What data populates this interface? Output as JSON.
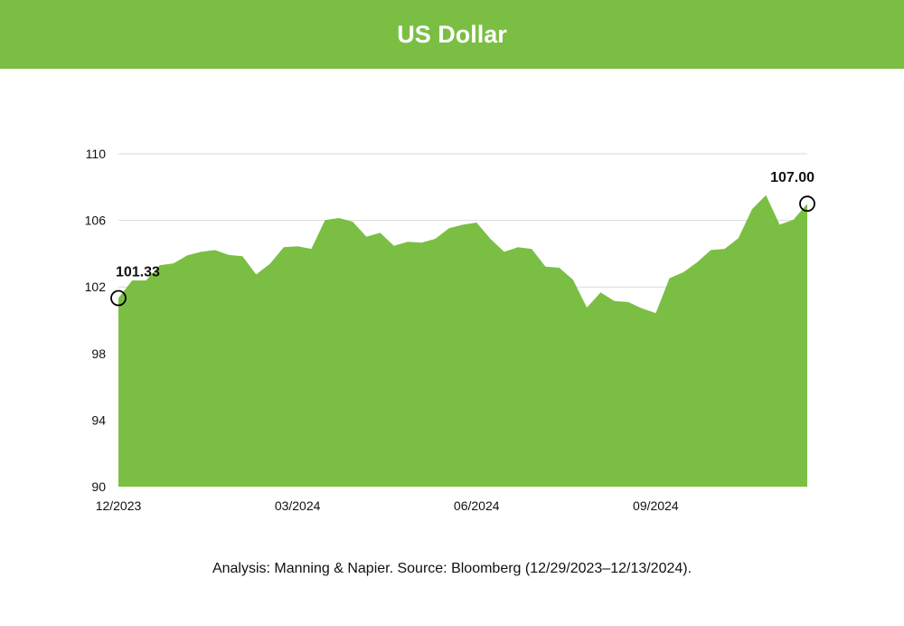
{
  "header": {
    "title": "US Dollar"
  },
  "footer": {
    "source": "Analysis: Manning & Napier. Source: Bloomberg (12/29/2023–12/13/2024)."
  },
  "colors": {
    "header": "#7abf43",
    "area": "#7abf43",
    "grid": "#d9d9d9",
    "marker": "#000000"
  },
  "chart_data": {
    "type": "area",
    "title": "US Dollar",
    "xlabel": "",
    "ylabel": "",
    "ylim": [
      90,
      110
    ],
    "yticks": [
      90,
      94,
      98,
      102,
      106,
      110
    ],
    "xtick_labels": [
      {
        "index": 0,
        "label": "12/2023"
      },
      {
        "index": 13,
        "label": "03/2024"
      },
      {
        "index": 26,
        "label": "06/2024"
      },
      {
        "index": 39,
        "label": "09/2024"
      }
    ],
    "grid": "horizontal",
    "values": [
      101.33,
      102.39,
      102.39,
      103.3,
      103.42,
      103.9,
      104.11,
      104.22,
      103.93,
      103.84,
      102.75,
      103.39,
      104.39,
      104.44,
      104.29,
      106.02,
      106.14,
      105.92,
      105.02,
      105.25,
      104.47,
      104.71,
      104.66,
      104.89,
      105.53,
      105.74,
      105.87,
      104.89,
      104.11,
      104.39,
      104.28,
      103.22,
      103.15,
      102.43,
      100.76,
      101.67,
      101.16,
      101.09,
      100.71,
      100.43,
      102.52,
      102.88,
      103.48,
      104.22,
      104.29,
      104.93,
      106.68,
      107.51,
      105.74,
      106.05,
      107.0
    ],
    "annotations": [
      {
        "index": 0,
        "label": "101.33"
      },
      {
        "index": 50,
        "label": "107.00"
      }
    ]
  }
}
